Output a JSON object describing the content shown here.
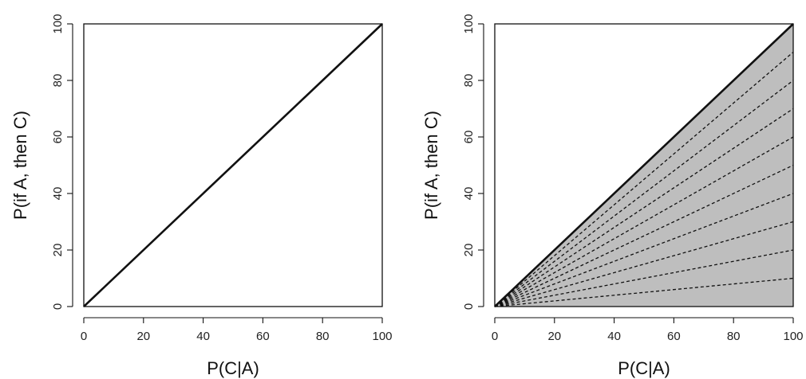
{
  "chart_data": [
    {
      "type": "line",
      "title": "",
      "xlabel": "P(C|A)",
      "ylabel": "P(if A, then C)",
      "xlim": [
        0,
        100
      ],
      "ylim": [
        0,
        100
      ],
      "xticks": [
        "0",
        "20",
        "40",
        "60",
        "80",
        "100"
      ],
      "yticks": [
        "0",
        "20",
        "40",
        "60",
        "80",
        "100"
      ],
      "grid": false,
      "series": [
        {
          "style": "solid",
          "x": [
            0,
            100
          ],
          "y": [
            0,
            100
          ]
        }
      ]
    },
    {
      "type": "area",
      "title": "",
      "xlabel": "P(C|A)",
      "ylabel": "P(if A, then C)",
      "xlim": [
        0,
        100
      ],
      "ylim": [
        0,
        100
      ],
      "xticks": [
        "0",
        "20",
        "40",
        "60",
        "80",
        "100"
      ],
      "yticks": [
        "0",
        "20",
        "40",
        "60",
        "80",
        "100"
      ],
      "grid": false,
      "shaded_region": {
        "color": "#bebebe",
        "x": [
          0,
          100,
          100
        ],
        "y": [
          0,
          100,
          0
        ]
      },
      "series": [
        {
          "style": "solid",
          "x": [
            0,
            100
          ],
          "y": [
            0,
            100
          ]
        },
        {
          "style": "dashed",
          "x": [
            0,
            100
          ],
          "y": [
            0,
            90
          ]
        },
        {
          "style": "dashed",
          "x": [
            0,
            100
          ],
          "y": [
            0,
            80
          ]
        },
        {
          "style": "dashed",
          "x": [
            0,
            100
          ],
          "y": [
            0,
            70
          ]
        },
        {
          "style": "dashed",
          "x": [
            0,
            100
          ],
          "y": [
            0,
            60
          ]
        },
        {
          "style": "dashed",
          "x": [
            0,
            100
          ],
          "y": [
            0,
            50
          ]
        },
        {
          "style": "dashed",
          "x": [
            0,
            100
          ],
          "y": [
            0,
            40
          ]
        },
        {
          "style": "dashed",
          "x": [
            0,
            100
          ],
          "y": [
            0,
            30
          ]
        },
        {
          "style": "dashed",
          "x": [
            0,
            100
          ],
          "y": [
            0,
            20
          ]
        },
        {
          "style": "dashed",
          "x": [
            0,
            100
          ],
          "y": [
            0,
            10
          ]
        }
      ]
    }
  ]
}
